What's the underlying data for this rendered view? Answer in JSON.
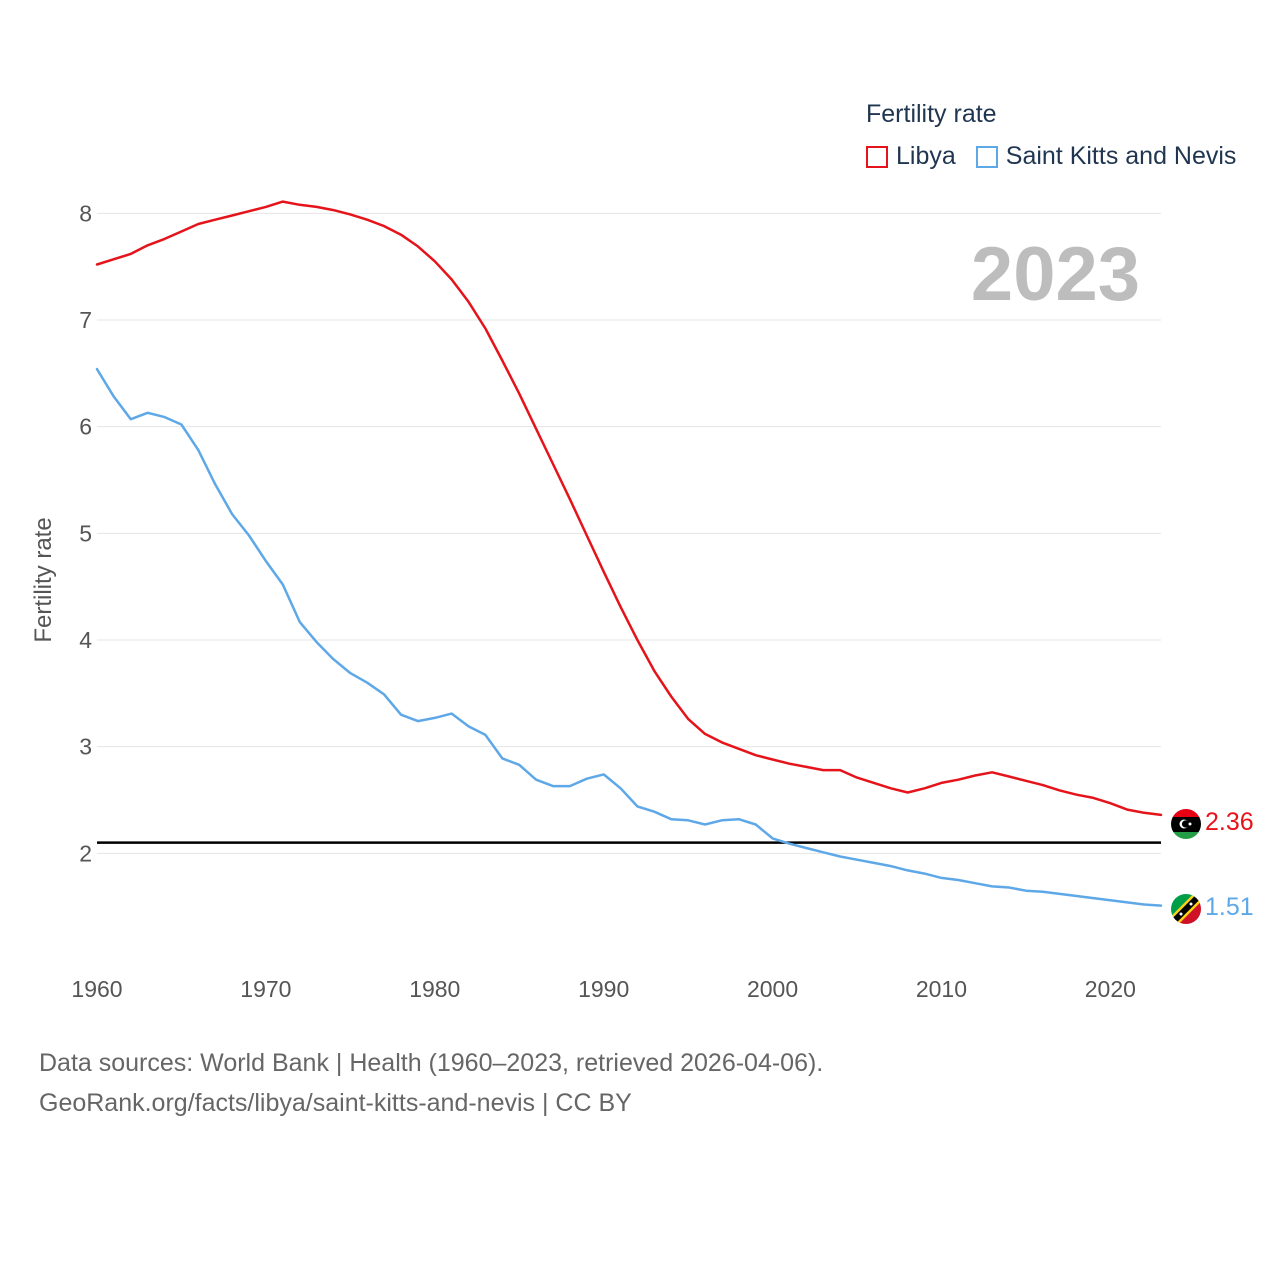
{
  "legend": {
    "title": "Fertility rate",
    "items": [
      {
        "label": "Libya",
        "color": "#e5141b"
      },
      {
        "label": "Saint Kitts and Nevis",
        "color": "#5ea8e8"
      }
    ]
  },
  "chart_data": {
    "type": "line",
    "title": "",
    "year_label": "2023",
    "xlabel": "",
    "ylabel": "Fertility rate",
    "xlim": [
      1960,
      2023
    ],
    "ylim": [
      1.0,
      8.5
    ],
    "x_ticks": [
      1960,
      1970,
      1980,
      1990,
      2000,
      2010,
      2020
    ],
    "x_tick_labels": [
      "1960",
      "1970",
      "1980",
      "1990",
      "2000",
      "2010",
      "2020"
    ],
    "y_ticks": [
      2,
      3,
      4,
      5,
      6,
      7,
      8
    ],
    "y_tick_labels": [
      "2",
      "3",
      "4",
      "5",
      "6",
      "7",
      "8"
    ],
    "grid": true,
    "reference_line": {
      "value": 2.1,
      "color": "#000000"
    },
    "x": [
      1960,
      1961,
      1962,
      1963,
      1964,
      1965,
      1966,
      1967,
      1968,
      1969,
      1970,
      1971,
      1972,
      1973,
      1974,
      1975,
      1976,
      1977,
      1978,
      1979,
      1980,
      1981,
      1982,
      1983,
      1984,
      1985,
      1986,
      1987,
      1988,
      1989,
      1990,
      1991,
      1992,
      1993,
      1994,
      1995,
      1996,
      1997,
      1998,
      1999,
      2000,
      2001,
      2002,
      2003,
      2004,
      2005,
      2006,
      2007,
      2008,
      2009,
      2010,
      2011,
      2012,
      2013,
      2014,
      2015,
      2016,
      2017,
      2018,
      2019,
      2020,
      2021,
      2022,
      2023
    ],
    "series": [
      {
        "name": "Libya",
        "color": "#e5141b",
        "end_label": "2.36",
        "flag": "libya-flag",
        "values": [
          7.52,
          7.57,
          7.62,
          7.7,
          7.76,
          7.83,
          7.9,
          7.94,
          7.98,
          8.02,
          8.06,
          8.11,
          8.08,
          8.06,
          8.03,
          7.99,
          7.94,
          7.88,
          7.8,
          7.69,
          7.55,
          7.38,
          7.17,
          6.92,
          6.62,
          6.31,
          5.98,
          5.65,
          5.32,
          4.98,
          4.64,
          4.31,
          4.0,
          3.71,
          3.47,
          3.26,
          3.12,
          3.04,
          2.98,
          2.92,
          2.88,
          2.84,
          2.81,
          2.78,
          2.78,
          2.71,
          2.66,
          2.61,
          2.57,
          2.61,
          2.66,
          2.69,
          2.73,
          2.76,
          2.72,
          2.68,
          2.64,
          2.59,
          2.55,
          2.52,
          2.47,
          2.41,
          2.38,
          2.36
        ]
      },
      {
        "name": "Saint Kitts and Nevis",
        "color": "#5ea8e8",
        "end_label": "1.51",
        "flag": "saint-kitts-and-nevis-flag",
        "values": [
          6.54,
          6.28,
          6.07,
          6.13,
          6.09,
          6.02,
          5.78,
          5.46,
          5.18,
          4.98,
          4.74,
          4.52,
          4.17,
          3.98,
          3.82,
          3.69,
          3.6,
          3.49,
          3.3,
          3.24,
          3.27,
          3.31,
          3.19,
          3.11,
          2.89,
          2.83,
          2.69,
          2.63,
          2.63,
          2.7,
          2.74,
          2.61,
          2.44,
          2.39,
          2.32,
          2.31,
          2.27,
          2.31,
          2.32,
          2.27,
          2.14,
          2.09,
          2.05,
          2.01,
          1.97,
          1.94,
          1.91,
          1.88,
          1.84,
          1.81,
          1.77,
          1.75,
          1.72,
          1.69,
          1.68,
          1.65,
          1.64,
          1.62,
          1.6,
          1.58,
          1.56,
          1.54,
          1.52,
          1.51
        ]
      }
    ]
  },
  "source": {
    "line1": "Data sources: World Bank | Health (1960–2023, retrieved 2026-04-06).",
    "line2": "GeoRank.org/facts/libya/saint-kitts-and-nevis | CC BY"
  }
}
